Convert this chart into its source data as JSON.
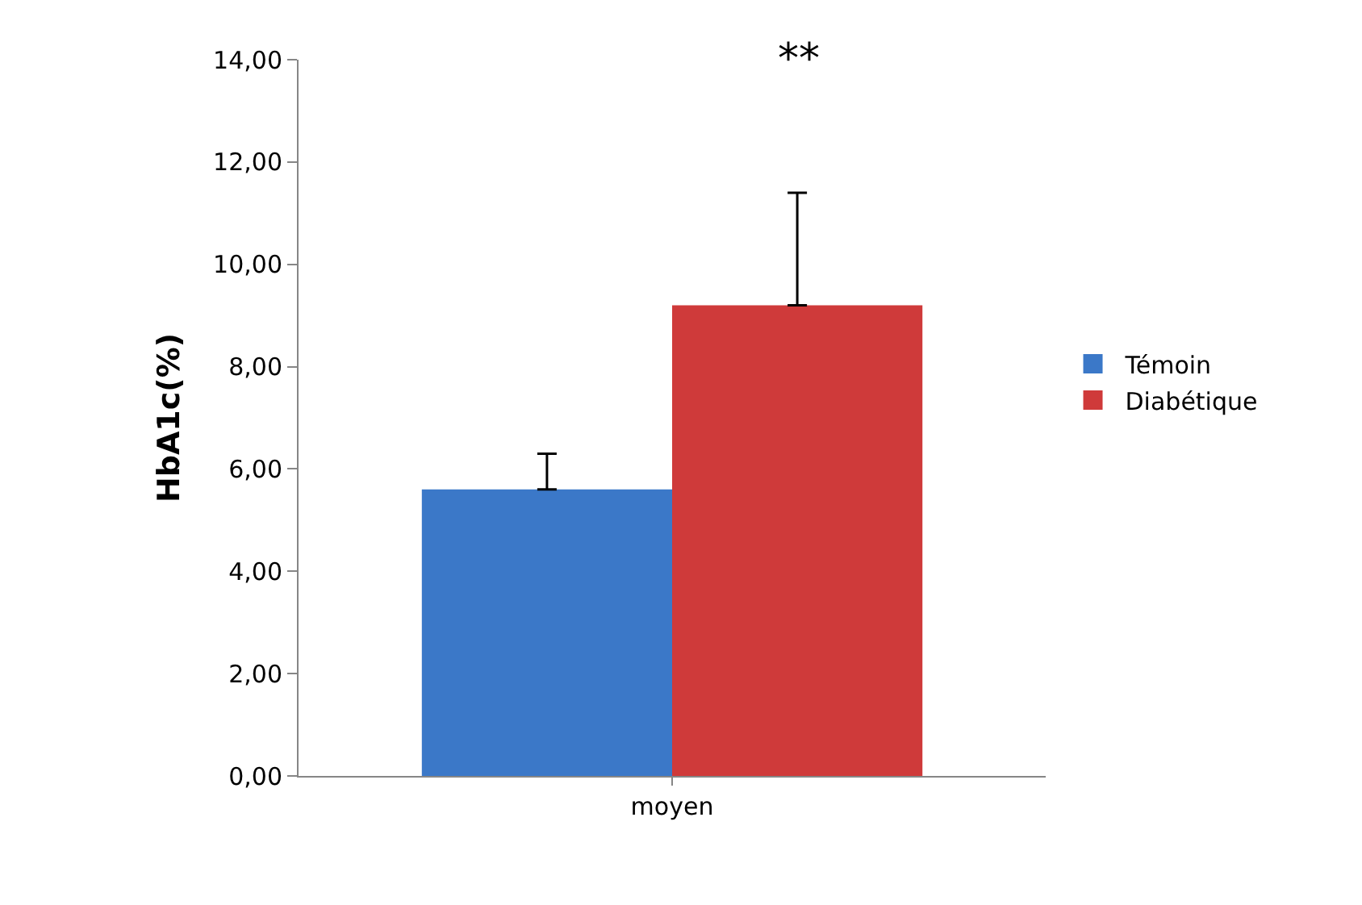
{
  "chart_data": {
    "type": "bar",
    "ylabel": "HbA1c(%)",
    "categories": [
      "moyen"
    ],
    "series": [
      {
        "name": "Témoin",
        "color": "#3b78c8",
        "values": [
          5.6
        ],
        "errors": [
          [
            5.6,
            6.3
          ]
        ]
      },
      {
        "name": "Diabétique",
        "color": "#cf3a3a",
        "values": [
          9.2
        ],
        "errors": [
          [
            9.2,
            11.4
          ]
        ]
      }
    ],
    "ylim": [
      0,
      14
    ],
    "yticks": [
      {
        "value": 0,
        "label": "0,00"
      },
      {
        "value": 2,
        "label": "2,00"
      },
      {
        "value": 4,
        "label": "4,00"
      },
      {
        "value": 6,
        "label": "6,00"
      },
      {
        "value": 8,
        "label": "8,00"
      },
      {
        "value": 10,
        "label": "10,00"
      },
      {
        "value": 12,
        "label": "12,00"
      },
      {
        "value": 14,
        "label": "14,00"
      }
    ],
    "annotations": [
      "**"
    ],
    "legend": "right"
  }
}
